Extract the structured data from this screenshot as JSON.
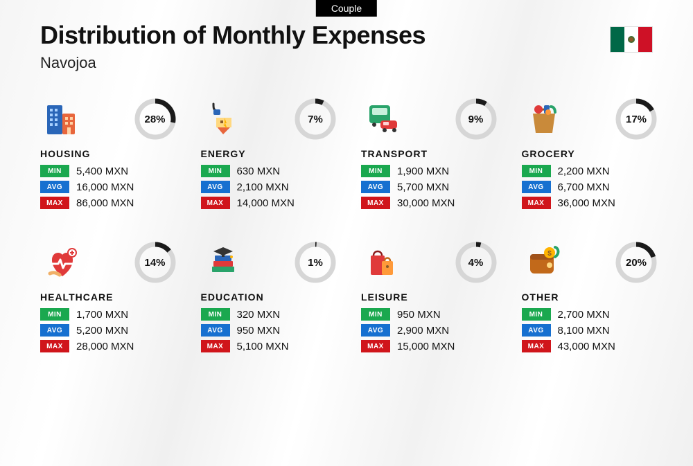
{
  "badge_label": "Couple",
  "title": "Distribution of Monthly Expenses",
  "subtitle": "Navojoa",
  "ring": {
    "track_color": "#d6d6d6",
    "progress_color": "#1a1a1a",
    "stroke_width": 7,
    "radius": 26
  },
  "stat_labels": {
    "min": "MIN",
    "avg": "AVG",
    "max": "MAX"
  },
  "stat_colors": {
    "min": "#1aa84f",
    "avg": "#1670d0",
    "max": "#d0151b"
  },
  "categories": [
    {
      "name": "HOUSING",
      "percent": 28,
      "min": "5,400 MXN",
      "avg": "16,000 MXN",
      "max": "86,000 MXN",
      "icon": "housing"
    },
    {
      "name": "ENERGY",
      "percent": 7,
      "min": "630 MXN",
      "avg": "2,100 MXN",
      "max": "14,000 MXN",
      "icon": "energy"
    },
    {
      "name": "TRANSPORT",
      "percent": 9,
      "min": "1,900 MXN",
      "avg": "5,700 MXN",
      "max": "30,000 MXN",
      "icon": "transport"
    },
    {
      "name": "GROCERY",
      "percent": 17,
      "min": "2,200 MXN",
      "avg": "6,700 MXN",
      "max": "36,000 MXN",
      "icon": "grocery"
    },
    {
      "name": "HEALTHCARE",
      "percent": 14,
      "min": "1,700 MXN",
      "avg": "5,200 MXN",
      "max": "28,000 MXN",
      "icon": "healthcare"
    },
    {
      "name": "EDUCATION",
      "percent": 1,
      "min": "320 MXN",
      "avg": "950 MXN",
      "max": "5,100 MXN",
      "icon": "education"
    },
    {
      "name": "LEISURE",
      "percent": 4,
      "min": "950 MXN",
      "avg": "2,900 MXN",
      "max": "15,000 MXN",
      "icon": "leisure"
    },
    {
      "name": "OTHER",
      "percent": 20,
      "min": "2,700 MXN",
      "avg": "8,100 MXN",
      "max": "43,000 MXN",
      "icon": "other"
    }
  ],
  "icons": {
    "housing": "<svg width='56' height='56' viewBox='0 0 56 56'><rect x='6' y='8' width='22' height='42' rx='2' fill='#2a66b8'/><rect x='10' y='13' width='4' height='4' fill='#a8d1ff'/><rect x='17' y='13' width='4' height='4' fill='#a8d1ff'/><rect x='10' y='20' width='4' height='4' fill='#a8d1ff'/><rect x='17' y='20' width='4' height='4' fill='#a8d1ff'/><rect x='10' y='27' width='4' height='4' fill='#a8d1ff'/><rect x='17' y='27' width='4' height='4' fill='#a8d1ff'/><rect x='10' y='34' width='4' height='4' fill='#a8d1ff'/><rect x='17' y='34' width='4' height='4' fill='#a8d1ff'/><rect x='28' y='20' width='18' height='30' rx='2' fill='#e8663c'/><rect x='32' y='25' width='4' height='4' fill='#ffd2a6'/><rect x='39' y='25' width='4' height='4' fill='#ffd2a6'/><rect x='32' y='32' width='4' height='4' fill='#ffd2a6'/><rect x='39' y='32' width='4' height='4' fill='#ffd2a6'/><rect x='35' y='40' width='5' height='10' fill='#ffd2a6'/></svg>",
    "energy": "<svg width='56' height='56' viewBox='0 0 56 56'><path d='M14 6c0 6 0 8 4 10' stroke='#2a2a2a' stroke-width='3' fill='none' stroke-linecap='round'/><rect x='14' y='14' width='10' height='8' rx='2' fill='#2a66b8'/><path d='M28 50 L18 38 h22 z' fill='#e8663c'/><rect x='18' y='26' width='22' height='14' fill='#ffd880'/><rect x='24' y='30' width='4' height='4' fill='#8a5a2a'/><path d='M30 26 l3 8 l-2 0 l3 8 l-6 -6 l2 0 z' fill='#ffb300'/></svg>",
    "transport": "<svg width='56' height='56' viewBox='0 0 56 56'><rect x='8' y='8' width='30' height='26' rx='4' fill='#29a36a'/><rect x='12' y='12' width='22' height='10' rx='2' fill='#c8f0dc'/><circle cx='15' cy='36' r='3' fill='#333'/><circle cx='31' cy='36' r='3' fill='#333'/><rect x='24' y='30' width='24' height='12' rx='4' fill='#e03a3a'/><rect x='28' y='32' width='8' height='5' rx='1' fill='#ffd2d2'/><circle cx='30' cy='44' r='3' fill='#333'/><circle cx='44' cy='44' r='3' fill='#333'/></svg>",
    "grocery": "<svg width='56' height='56' viewBox='0 0 56 56'><path d='M12 20 h32 l-4 28 h-24 z' fill='#c98a3a'/><path d='M20 20 c0 -8 16 -8 16 0' stroke='#8a5a2a' stroke-width='3' fill='none'/><circle cx='20' cy='14' r='6' fill='#e03a3a'/><rect x='28' y='8' width='8' height='12' rx='2' fill='#2a66b8'/><path d='M38 10 c4 0 6 4 6 8' stroke='#29a36a' stroke-width='4' fill='none' stroke-linecap='round'/><circle cx='34' cy='18' r='4' fill='#ff9a3a'/></svg>",
    "healthcare": "<svg width='56' height='56' viewBox='0 0 56 56'><path d='M28 48 C8 34 10 14 22 14 c4 0 6 3 6 3 s2 -3 6 -3 c12 0 14 20 -6 34 z' fill='#e03a3a'/><path d='M12 30 h10 l3 -6 l4 12 l3 -6 h12' stroke='#fff' stroke-width='3' fill='none' stroke-linecap='round' stroke-linejoin='round'/><circle cx='42' cy='14' r='6' fill='#fff' stroke='#e03a3a' stroke-width='2'/><path d='M42 11 v6 M39 14 h6' stroke='#e03a3a' stroke-width='2'/><path d='M10 44 c4 -2 8 -2 14 2' stroke='#f0b068' stroke-width='5' fill='none' stroke-linecap='round'/></svg>",
    "education": "<svg width='56' height='56' viewBox='0 0 56 56'><rect x='12' y='34' width='32' height='8' rx='1' fill='#29a36a'/><rect x='14' y='26' width='28' height='8' rx='1' fill='#e03a3a'/><rect x='16' y='18' width='24' height='8' rx='1' fill='#2a66b8'/><path d='M28 6 l14 6 l-14 6 l-14 -6 z' fill='#333'/><rect x='26' y='14' width='4' height='6' fill='#333'/><circle cx='40' cy='20' r='2' fill='#ffb300'/></svg>",
    "leisure": "<svg width='56' height='56' viewBox='0 0 56 56'><rect x='10' y='18' width='20' height='28' rx='2' fill='#e03a3a'/><path d='M14 18 c0 -8 12 -8 12 0' stroke='#8a1a1a' stroke-width='2.5' fill='none'/><rect x='26' y='26' width='16' height='20' rx='2' fill='#ff9a3a'/><path d='M30 26 c0 -6 8 -6 8 0' stroke='#c2691a' stroke-width='2.5' fill='none'/><circle cx='34' cy='34' r='2' fill='#8a5a2a'/></svg>",
    "other": "<svg width='56' height='56' viewBox='0 0 56 56'><rect x='8' y='16' width='34' height='28' rx='6' fill='#c2691a'/><rect x='8' y='16' width='34' height='8' rx='4' fill='#a0521a'/><circle cx='36' cy='32' r='4' fill='#ffd880'/><circle cx='36' cy='14' r='8' fill='#ffb300'/><text x='36' y='18' font-size='10' text-anchor='middle' fill='#8a5a2a' font-weight='bold'>$</text><path d='M44 20 c6 -4 6 -12 0 -14' stroke='#29a36a' stroke-width='4' fill='none' stroke-linecap='round'/><path d='M44 6 l4 0 l-2 4 z' fill='#29a36a'/></svg>"
  }
}
